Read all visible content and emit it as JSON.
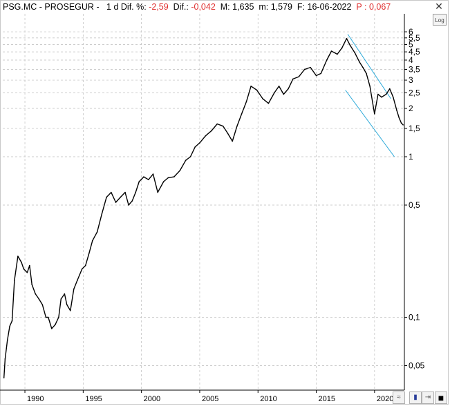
{
  "header": {
    "symbol": "PSG.MC",
    "sep1": " - ",
    "name": "PROSEGUR",
    "sep2": " -   ",
    "period": "1 d",
    "dif_pct_label": " Dif. %: ",
    "dif_pct_value": "-2,59",
    "dif_label": "  Dif.: ",
    "dif_value": "-0,042",
    "max_label": "  M: ",
    "max_value": "1,635",
    "min_label": "  m: ",
    "min_value": "1,579",
    "date_label": "  F: ",
    "date_value": "16-06-2022",
    "price_label": "  P : ",
    "price_value": "0,067"
  },
  "buttons": {
    "log_label": "Log",
    "close_label": "✕"
  },
  "colors": {
    "accent_red": "#e03030",
    "trend_line": "#29a8d8",
    "price_line": "#000000"
  },
  "chart_data": {
    "type": "line",
    "y_scale": "log",
    "grid": true,
    "y_ticks": [
      {
        "value": 6,
        "label": "6"
      },
      {
        "value": 5.5,
        "label": "5,5"
      },
      {
        "value": 5,
        "label": "5"
      },
      {
        "value": 4.5,
        "label": "4,5"
      },
      {
        "value": 4,
        "label": "4"
      },
      {
        "value": 3.5,
        "label": "3,5"
      },
      {
        "value": 3,
        "label": "3"
      },
      {
        "value": 2.5,
        "label": "2,5"
      },
      {
        "value": 2,
        "label": "2"
      },
      {
        "value": 1.5,
        "label": "1,5"
      },
      {
        "value": 1,
        "label": "1"
      },
      {
        "value": 0.5,
        "label": "0,5"
      },
      {
        "value": 0.1,
        "label": "0,1"
      },
      {
        "value": 0.05,
        "label": "0,05"
      }
    ],
    "x_ticks": [
      "1990",
      "1995",
      "2000",
      "2005",
      "2010",
      "2015",
      "2020"
    ],
    "xlim": [
      1988.1,
      2022.5
    ],
    "series": [
      {
        "x": [
          1988.2,
          1988.3,
          1988.5,
          1988.7,
          1988.9,
          1989.1,
          1989.4,
          1989.7,
          1989.9,
          1990.2,
          1990.4,
          1990.6,
          1990.9,
          1991.2,
          1991.5,
          1991.8,
          1992.0,
          1992.3,
          1992.6,
          1992.9,
          1993.1,
          1993.4,
          1993.6,
          1993.9,
          1994.2,
          1994.5,
          1994.9,
          1995.2,
          1995.5,
          1995.8,
          1996.2,
          1996.6,
          1997.0,
          1997.4,
          1997.8,
          1998.2,
          1998.6,
          1998.9,
          1999.2,
          1999.5,
          1999.8,
          2000.2,
          2000.6,
          2001.0,
          2001.4,
          2001.9,
          2002.3,
          2002.8,
          2003.3,
          2003.8,
          2004.2,
          2004.6,
          2005.0,
          2005.5,
          2006.0,
          2006.5,
          2007.0,
          2007.4,
          2007.8,
          2008.2,
          2008.6,
          2009.0,
          2009.4,
          2009.9,
          2010.4,
          2010.9,
          2011.4,
          2011.8,
          2012.2,
          2012.6,
          2013.0,
          2013.5,
          2014.0,
          2014.5,
          2015.0,
          2015.4,
          2015.9,
          2016.3,
          2016.8,
          2017.2,
          2017.6,
          2017.9,
          2018.3,
          2018.7,
          2019.0,
          2019.3,
          2019.6,
          2020.0,
          2020.3,
          2020.6,
          2021.0,
          2021.3,
          2021.6,
          2021.9,
          2022.1,
          2022.3,
          2022.45
        ],
        "y": [
          0.042,
          0.055,
          0.072,
          0.088,
          0.095,
          0.17,
          0.24,
          0.22,
          0.2,
          0.19,
          0.21,
          0.16,
          0.14,
          0.13,
          0.12,
          0.1,
          0.1,
          0.085,
          0.09,
          0.1,
          0.13,
          0.14,
          0.12,
          0.11,
          0.15,
          0.17,
          0.2,
          0.21,
          0.25,
          0.3,
          0.34,
          0.44,
          0.56,
          0.6,
          0.52,
          0.56,
          0.6,
          0.5,
          0.53,
          0.6,
          0.7,
          0.75,
          0.72,
          0.78,
          0.6,
          0.7,
          0.74,
          0.75,
          0.82,
          0.95,
          1.0,
          1.15,
          1.22,
          1.35,
          1.45,
          1.6,
          1.55,
          1.4,
          1.25,
          1.55,
          1.85,
          2.2,
          2.75,
          2.6,
          2.3,
          2.15,
          2.5,
          2.75,
          2.45,
          2.65,
          3.05,
          3.15,
          3.5,
          3.6,
          3.2,
          3.3,
          4.0,
          4.55,
          4.35,
          4.75,
          5.45,
          4.95,
          4.45,
          3.9,
          3.6,
          3.3,
          2.75,
          1.85,
          2.45,
          2.35,
          2.45,
          2.65,
          2.35,
          1.95,
          1.75,
          1.62,
          1.579
        ]
      }
    ],
    "trend_lines": [
      {
        "x": [
          2017.7,
          2021.4
        ],
        "y": [
          5.8,
          2.3
        ]
      },
      {
        "x": [
          2017.5,
          2021.7
        ],
        "y": [
          2.6,
          1.0
        ]
      }
    ]
  },
  "toolbar": {
    "items": [
      {
        "name": "indicator-toggle-icon",
        "glyph": "≈"
      },
      {
        "name": "save-icon",
        "glyph": "▮"
      },
      {
        "name": "expand-icon",
        "glyph": "⇥"
      },
      {
        "name": "color-swatch",
        "glyph": "■"
      }
    ]
  }
}
